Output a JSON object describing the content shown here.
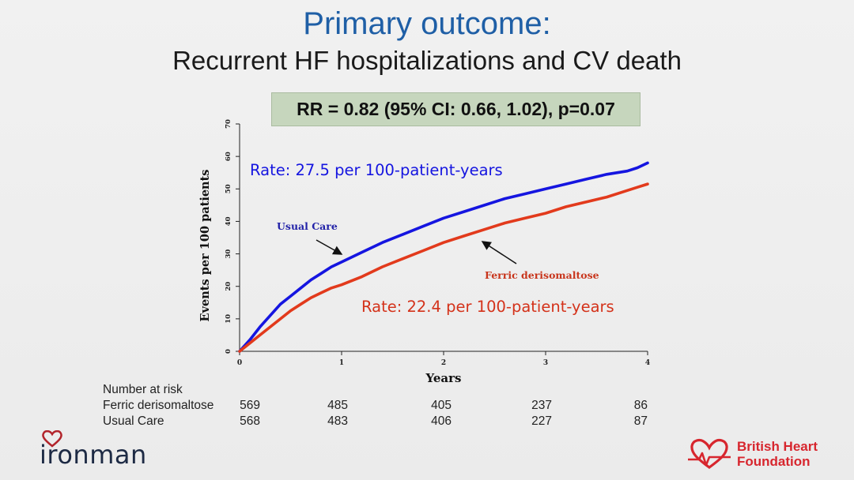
{
  "header": {
    "title": "Primary outcome:",
    "subtitle": "Recurrent HF hospitalizations and CV death",
    "rr_text": "RR = 0.82 (95% CI: 0.66, 1.02), p=0.07"
  },
  "colors": {
    "usual_care": "#1515e0",
    "ferric": "#e23a1c",
    "title": "#1f5fa6",
    "rr_box": "#c6d6bd"
  },
  "chart_data": {
    "type": "line",
    "xlabel": "Years",
    "ylabel": "Events per 100 patients",
    "xlim": [
      0,
      4
    ],
    "ylim": [
      0,
      70
    ],
    "x_ticks": [
      "0",
      "1",
      "2",
      "3",
      "4"
    ],
    "y_ticks": [
      "0",
      "10",
      "20",
      "30",
      "40",
      "50",
      "60",
      "70"
    ],
    "grid": false,
    "series": [
      {
        "name": "Usual Care",
        "x": [
          0,
          0.1,
          0.2,
          0.3,
          0.4,
          0.5,
          0.6,
          0.7,
          0.8,
          0.9,
          1.0,
          1.2,
          1.4,
          1.6,
          1.8,
          2.0,
          2.2,
          2.4,
          2.6,
          2.8,
          3.0,
          3.2,
          3.4,
          3.6,
          3.8,
          3.9,
          4.0
        ],
        "values": [
          0,
          3.5,
          7.5,
          11,
          14.5,
          17,
          19.5,
          22,
          24,
          26,
          27.5,
          30.5,
          33.5,
          36,
          38.5,
          41,
          43,
          45,
          47,
          48.5,
          50,
          51.5,
          53,
          54.5,
          55.5,
          56.5,
          58
        ]
      },
      {
        "name": "Ferric derisomaltose",
        "x": [
          0,
          0.1,
          0.2,
          0.3,
          0.4,
          0.5,
          0.6,
          0.7,
          0.8,
          0.9,
          1.0,
          1.2,
          1.4,
          1.6,
          1.8,
          2.0,
          2.2,
          2.4,
          2.6,
          2.8,
          3.0,
          3.2,
          3.4,
          3.6,
          3.8,
          3.9,
          4.0
        ],
        "values": [
          0,
          2.5,
          5,
          7.5,
          10,
          12.5,
          14.5,
          16.5,
          18,
          19.5,
          20.5,
          23,
          26,
          28.5,
          31,
          33.5,
          35.5,
          37.5,
          39.5,
          41,
          42.5,
          44.5,
          46,
          47.5,
          49.5,
          50.5,
          51.5
        ]
      }
    ],
    "annotations": {
      "rate_usual": "Rate: 27.5 per 100-patient-years",
      "rate_ferric": "Rate: 22.4 per 100-patient-years",
      "label_usual": "Usual Care",
      "label_ferric": "Ferric derisomaltose"
    }
  },
  "risk_table": {
    "title": "Number at risk",
    "rows": [
      {
        "label": "Ferric derisomaltose",
        "values": [
          "569",
          "485",
          "405",
          "237",
          "86"
        ]
      },
      {
        "label": "Usual Care",
        "values": [
          "568",
          "483",
          "406",
          "227",
          "87"
        ]
      }
    ]
  },
  "logos": {
    "left": "ironman",
    "right_line1": "British Heart",
    "right_line2": "Foundation"
  }
}
